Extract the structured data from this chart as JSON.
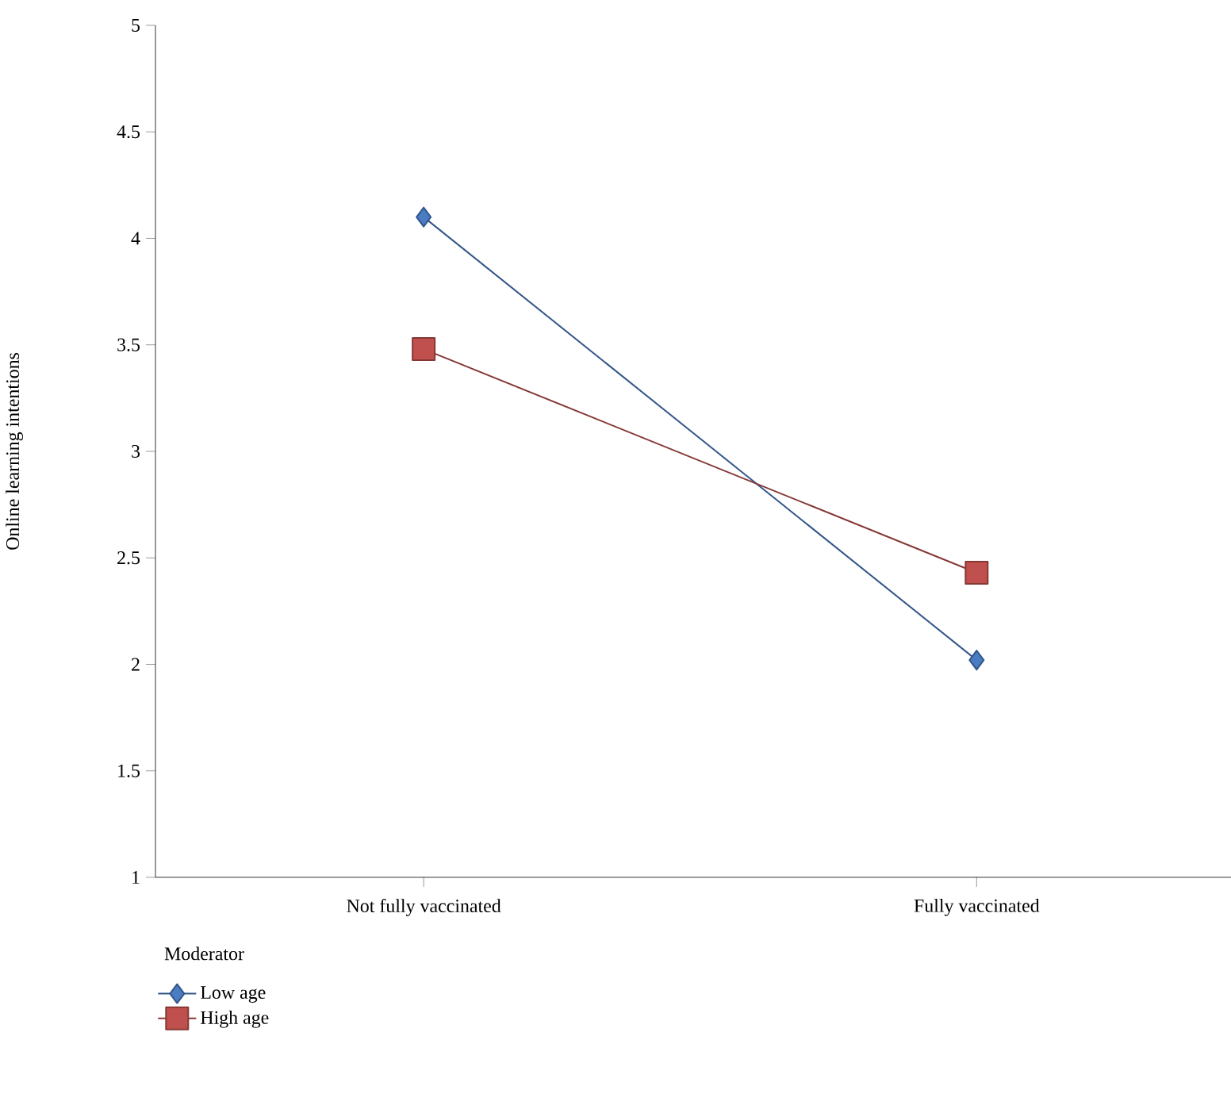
{
  "chart_data": {
    "type": "line",
    "ylabel": "Online learning intentions",
    "categories": [
      "Not fully vaccinated",
      "Fully vaccinated"
    ],
    "series": [
      {
        "name": "Low age",
        "color": "#4a7cc4",
        "marker": "diamond",
        "values": [
          4.1,
          2.02
        ]
      },
      {
        "name": "High age",
        "color": "#c0504d",
        "marker": "square",
        "values": [
          3.48,
          2.43
        ]
      }
    ],
    "ylim": [
      1,
      5
    ],
    "yticks": [
      1,
      1.5,
      2,
      2.5,
      3,
      3.5,
      4,
      4.5,
      5
    ],
    "legend_title": "Moderator",
    "legend": "bottom left",
    "grid": false
  }
}
